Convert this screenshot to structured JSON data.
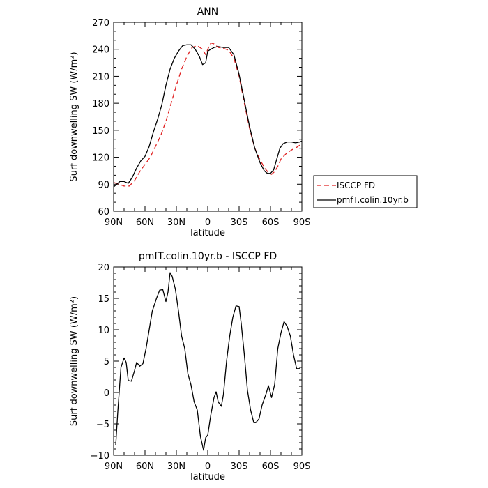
{
  "chart_data": [
    {
      "type": "line",
      "title": "ANN",
      "xlabel": "latitude",
      "ylabel": "Surf downwelling SW (W/m²)",
      "xlim": [
        90,
        -90
      ],
      "ylim": [
        60,
        270
      ],
      "xticks": [
        90,
        60,
        30,
        0,
        -30,
        -60,
        -90
      ],
      "xticklabels": [
        "90N",
        "60N",
        "30N",
        "0",
        "30S",
        "60S",
        "90S"
      ],
      "yticks": [
        60,
        90,
        120,
        150,
        180,
        210,
        240,
        270
      ],
      "yticklabels": [
        "60",
        "90",
        "120",
        "150",
        "180",
        "210",
        "240",
        "270"
      ],
      "legend_position": "right",
      "series": [
        {
          "name": "ISCCP FD",
          "color": "#e02020",
          "style": "dashed",
          "points": [
            [
              90,
              92
            ],
            [
              85,
              90
            ],
            [
              80,
              88
            ],
            [
              75,
              88
            ],
            [
              70,
              94
            ],
            [
              65,
              104
            ],
            [
              60,
              112
            ],
            [
              55,
              120
            ],
            [
              50,
              132
            ],
            [
              45,
              144
            ],
            [
              40,
              160
            ],
            [
              35,
              180
            ],
            [
              30,
              200
            ],
            [
              25,
              218
            ],
            [
              20,
              232
            ],
            [
              15,
              242
            ],
            [
              10,
              244
            ],
            [
              5,
              240
            ],
            [
              2,
              234
            ],
            [
              0,
              240
            ],
            [
              -3,
              247
            ],
            [
              -6,
              246
            ],
            [
              -10,
              242
            ],
            [
              -15,
              241
            ],
            [
              -20,
              239
            ],
            [
              -25,
              230
            ],
            [
              -30,
              210
            ],
            [
              -35,
              180
            ],
            [
              -40,
              152
            ],
            [
              -45,
              130
            ],
            [
              -50,
              117
            ],
            [
              -55,
              107
            ],
            [
              -58,
              103
            ],
            [
              -61,
              101
            ],
            [
              -64,
              104
            ],
            [
              -67,
              110
            ],
            [
              -70,
              118
            ],
            [
              -75,
              124
            ],
            [
              -80,
              128
            ],
            [
              -85,
              131
            ],
            [
              -90,
              135
            ]
          ]
        },
        {
          "name": "pmfT.colin.10yr.b",
          "color": "#000000",
          "style": "solid",
          "points": [
            [
              90,
              87
            ],
            [
              87,
              90
            ],
            [
              84,
              93
            ],
            [
              80,
              93
            ],
            [
              76,
              91
            ],
            [
              72,
              98
            ],
            [
              68,
              108
            ],
            [
              64,
              116
            ],
            [
              60,
              121
            ],
            [
              56,
              132
            ],
            [
              52,
              148
            ],
            [
              48,
              162
            ],
            [
              44,
              178
            ],
            [
              40,
              200
            ],
            [
              36,
              218
            ],
            [
              32,
              230
            ],
            [
              28,
              238
            ],
            [
              24,
              244
            ],
            [
              20,
              245
            ],
            [
              16,
              245
            ],
            [
              12,
              240
            ],
            [
              8,
              232
            ],
            [
              5,
              223
            ],
            [
              2,
              225
            ],
            [
              0,
              238
            ],
            [
              -3,
              240
            ],
            [
              -6,
              242
            ],
            [
              -10,
              243
            ],
            [
              -15,
              242
            ],
            [
              -20,
              242
            ],
            [
              -25,
              234
            ],
            [
              -30,
              212
            ],
            [
              -35,
              183
            ],
            [
              -40,
              154
            ],
            [
              -45,
              130
            ],
            [
              -50,
              114
            ],
            [
              -54,
              105
            ],
            [
              -57,
              102
            ],
            [
              -60,
              102
            ],
            [
              -63,
              106
            ],
            [
              -66,
              118
            ],
            [
              -69,
              130
            ],
            [
              -72,
              135
            ],
            [
              -76,
              137
            ],
            [
              -80,
              137
            ],
            [
              -84,
              136
            ],
            [
              -88,
              137
            ],
            [
              -90,
              138
            ]
          ]
        }
      ]
    },
    {
      "type": "line",
      "title": "pmfT.colin.10yr.b - ISCCP FD",
      "xlabel": "latitude",
      "ylabel": "Surf downwelling SW (W/m²)",
      "xlim": [
        90,
        -90
      ],
      "ylim": [
        -10,
        20
      ],
      "xticks": [
        90,
        60,
        30,
        0,
        -30,
        -60,
        -90
      ],
      "xticklabels": [
        "90N",
        "60N",
        "30N",
        "0",
        "30S",
        "60S",
        "90S"
      ],
      "yticks": [
        -10,
        -5,
        0,
        5,
        10,
        15,
        20
      ],
      "yticklabels": [
        "−10",
        "−5",
        "0",
        "5",
        "10",
        "15",
        "20"
      ],
      "series": [
        {
          "color": "#000000",
          "style": "solid",
          "points": [
            [
              88,
              -8.4
            ],
            [
              86,
              -3
            ],
            [
              83,
              4
            ],
            [
              80,
              5.5
            ],
            [
              78,
              4.8
            ],
            [
              76,
              1.9
            ],
            [
              73,
              1.8
            ],
            [
              70,
              3.5
            ],
            [
              68,
              4.8
            ],
            [
              65,
              4.2
            ],
            [
              62,
              4.6
            ],
            [
              59,
              7
            ],
            [
              56,
              10
            ],
            [
              53,
              13
            ],
            [
              49,
              15
            ],
            [
              46,
              16.3
            ],
            [
              43,
              16.4
            ],
            [
              40,
              14.5
            ],
            [
              38,
              16
            ],
            [
              36,
              19.1
            ],
            [
              34,
              18.5
            ],
            [
              31,
              16.5
            ],
            [
              28,
              13
            ],
            [
              25,
              9
            ],
            [
              22,
              7
            ],
            [
              19,
              3
            ],
            [
              16,
              1.2
            ],
            [
              13,
              -1.5
            ],
            [
              10,
              -2.8
            ],
            [
              7,
              -7
            ],
            [
              4,
              -9.2
            ],
            [
              2,
              -7.2
            ],
            [
              0,
              -6.8
            ],
            [
              -3,
              -3.5
            ],
            [
              -6,
              -0.8
            ],
            [
              -8,
              0.1
            ],
            [
              -10,
              -1.5
            ],
            [
              -13,
              -2.2
            ],
            [
              -15,
              -0.3
            ],
            [
              -18,
              5
            ],
            [
              -21,
              9
            ],
            [
              -24,
              12
            ],
            [
              -27,
              13.8
            ],
            [
              -30,
              13.7
            ],
            [
              -32,
              11
            ],
            [
              -35,
              6
            ],
            [
              -38,
              0.3
            ],
            [
              -41,
              -2.8
            ],
            [
              -44,
              -4.8
            ],
            [
              -46,
              -4.8
            ],
            [
              -49,
              -4.2
            ],
            [
              -52,
              -2
            ],
            [
              -56,
              -0.1
            ],
            [
              -58,
              1.1
            ],
            [
              -61,
              -0.8
            ],
            [
              -64,
              1.3
            ],
            [
              -67,
              7
            ],
            [
              -70,
              9.5
            ],
            [
              -73,
              11.3
            ],
            [
              -76,
              10.5
            ],
            [
              -79,
              9
            ],
            [
              -82,
              6
            ],
            [
              -85,
              3.8
            ],
            [
              -88,
              3.8
            ]
          ]
        }
      ]
    }
  ]
}
